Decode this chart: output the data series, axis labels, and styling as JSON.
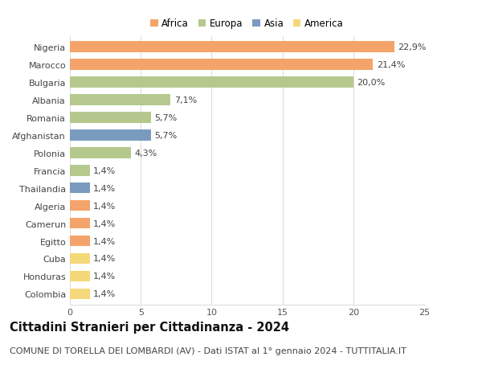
{
  "countries": [
    "Nigeria",
    "Marocco",
    "Bulgaria",
    "Albania",
    "Romania",
    "Afghanistan",
    "Polonia",
    "Francia",
    "Thailandia",
    "Algeria",
    "Camerun",
    "Egitto",
    "Cuba",
    "Honduras",
    "Colombia"
  ],
  "values": [
    22.9,
    21.4,
    20.0,
    7.1,
    5.7,
    5.7,
    4.3,
    1.4,
    1.4,
    1.4,
    1.4,
    1.4,
    1.4,
    1.4,
    1.4
  ],
  "labels": [
    "22,9%",
    "21,4%",
    "20,0%",
    "7,1%",
    "5,7%",
    "5,7%",
    "4,3%",
    "1,4%",
    "1,4%",
    "1,4%",
    "1,4%",
    "1,4%",
    "1,4%",
    "1,4%",
    "1,4%"
  ],
  "colors": [
    "#F4A46A",
    "#F4A46A",
    "#B5C98E",
    "#B5C98E",
    "#B5C98E",
    "#7A9BBF",
    "#B5C98E",
    "#B5C98E",
    "#7A9BBF",
    "#F4A46A",
    "#F4A46A",
    "#F4A46A",
    "#F5D87A",
    "#F5D87A",
    "#F5D87A"
  ],
  "legend_labels": [
    "Africa",
    "Europa",
    "Asia",
    "America"
  ],
  "legend_colors": [
    "#F4A46A",
    "#B5C98E",
    "#7A9BBF",
    "#F5D87A"
  ],
  "title": "Cittadini Stranieri per Cittadinanza - 2024",
  "subtitle": "COMUNE DI TORELLA DEI LOMBARDI (AV) - Dati ISTAT al 1° gennaio 2024 - TUTTITALIA.IT",
  "xlim": [
    0,
    25
  ],
  "xticks": [
    0,
    5,
    10,
    15,
    20,
    25
  ],
  "bg_color": "#ffffff",
  "grid_color": "#dddddd",
  "bar_height": 0.62,
  "title_fontsize": 10.5,
  "subtitle_fontsize": 8.0,
  "label_fontsize": 8.0,
  "tick_fontsize": 8.0,
  "legend_fontsize": 8.5
}
